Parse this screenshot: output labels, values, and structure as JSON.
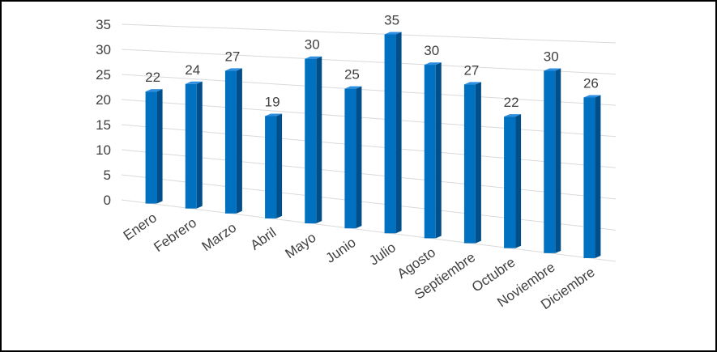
{
  "chart_data": {
    "type": "bar",
    "categories": [
      "Enero",
      "Febrero",
      "Marzo",
      "Abril",
      "Mayo",
      "Junio",
      "Julio",
      "Agosto",
      "Septiembre",
      "Octubre",
      "Noviembre",
      "Diciembre"
    ],
    "values": [
      22,
      24,
      27,
      19,
      30,
      25,
      35,
      30,
      27,
      22,
      30,
      26
    ],
    "title": "",
    "xlabel": "",
    "ylabel": "",
    "ylim": [
      0,
      35
    ],
    "yticks": [
      0,
      5,
      10,
      15,
      20,
      25,
      30,
      35
    ],
    "grid": true,
    "legend": "none",
    "style": "3d-column",
    "colors": {
      "bar_front": "#0070c0",
      "bar_side": "#004f8a",
      "bar_top": "#2e8ee0",
      "grid": "#d9d9d9",
      "text": "#404040",
      "border": "#000000"
    }
  }
}
